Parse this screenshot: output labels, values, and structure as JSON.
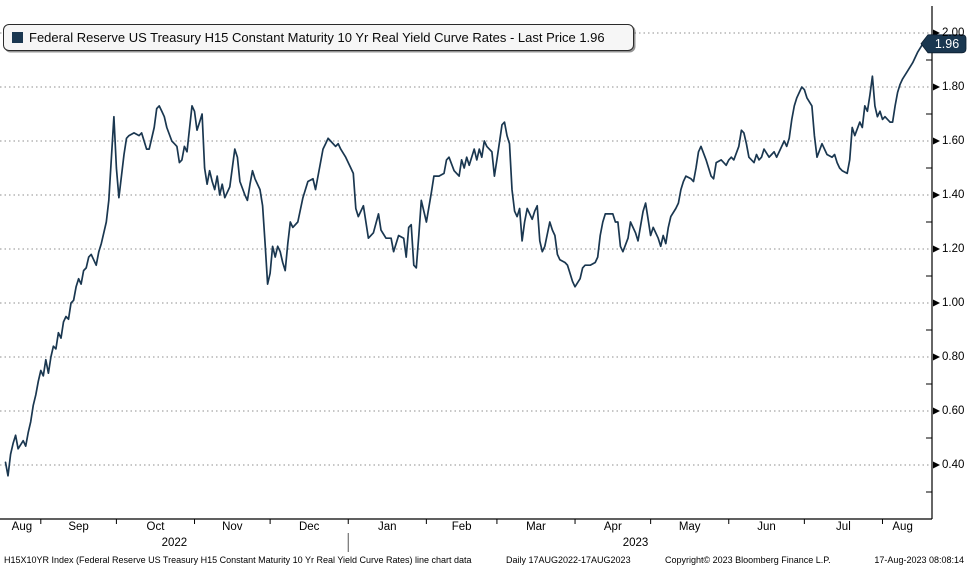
{
  "legend": {
    "label": "Federal Reserve US Treasury H15 Constant Maturity 10 Yr Real Yield Curve Rates - Last Price 1.96",
    "swatch_color": "#1a3750"
  },
  "last_price_badge": {
    "value": "1.96",
    "bg": "#1a3750",
    "text_color": "#ffffff"
  },
  "colors": {
    "line": "#1a3750",
    "grid": "#8f8f8f",
    "axis": "#000000",
    "legend_bg": "#f6f6f6"
  },
  "footer": {
    "left": "H15X10YR Index (Federal Reserve US Treasury H15 Constant Maturity 10 Yr Real Yield Curve Rates) line chart data",
    "daily": "Daily 17AUG2022-17AUG2023",
    "copyright": "Copyright© 2023 Bloomberg Finance L.P.",
    "timestamp": "17-Aug-2023 08:08:14"
  },
  "chart_data": {
    "type": "line",
    "title": "Federal Reserve US Treasury H15 Constant Maturity 10 Yr Real Yield Curve Rates - Last Price 1.96",
    "x_unit": "days since 17-Aug-2022",
    "x_range": [
      "17AUG2022",
      "17AUG2023"
    ],
    "ylim": [
      0.2,
      2.09
    ],
    "grid": "dotted horizontal at 0.20 intervals",
    "legend_position": "top-left boxed",
    "last_price": 1.96,
    "y_axis": {
      "side": "right",
      "major_values": [
        2.0,
        1.8,
        1.6,
        1.4,
        1.2,
        1.0,
        0.8,
        0.6,
        0.4
      ],
      "major_labels": [
        "2.00",
        "1.80",
        "1.60",
        "1.40",
        "1.20",
        "1.00",
        "0.80",
        "0.60",
        "0.40"
      ],
      "minor_values": [
        1.9,
        1.7,
        1.5,
        1.3,
        1.1,
        0.9,
        0.7,
        0.5,
        0.3
      ]
    },
    "x_axis": {
      "month_boundary_days": [
        15,
        45,
        76,
        106,
        137,
        168,
        196,
        227,
        257,
        288,
        318,
        349
      ],
      "month_labels": [
        "Aug",
        "Sep",
        "Oct",
        "Nov",
        "Dec",
        "Jan",
        "Feb",
        "Mar",
        "Apr",
        "May",
        "Jun",
        "Jul",
        "Aug"
      ],
      "year_labels": [
        {
          "label": "2022",
          "center_day": 68
        },
        {
          "label": "2023",
          "center_day": 251
        }
      ],
      "year_separator_day": 137
    },
    "series": [
      {
        "name": "Federal Reserve US Treasury H15 Constant Maturity 10 Yr Real Yield Curve Rates",
        "points": [
          [
            1,
            0.41
          ],
          [
            2,
            0.36
          ],
          [
            3,
            0.44
          ],
          [
            4,
            0.48
          ],
          [
            5,
            0.51
          ],
          [
            6,
            0.46
          ],
          [
            8,
            0.49
          ],
          [
            9,
            0.47
          ],
          [
            10,
            0.52
          ],
          [
            11,
            0.56
          ],
          [
            12,
            0.62
          ],
          [
            13,
            0.66
          ],
          [
            14,
            0.71
          ],
          [
            15,
            0.75
          ],
          [
            16,
            0.73
          ],
          [
            17,
            0.79
          ],
          [
            18,
            0.74
          ],
          [
            19,
            0.8
          ],
          [
            20,
            0.84
          ],
          [
            21,
            0.83
          ],
          [
            22,
            0.89
          ],
          [
            23,
            0.87
          ],
          [
            24,
            0.93
          ],
          [
            25,
            0.95
          ],
          [
            26,
            0.94
          ],
          [
            27,
            1.0
          ],
          [
            28,
            1.01
          ],
          [
            29,
            1.06
          ],
          [
            30,
            1.09
          ],
          [
            31,
            1.07
          ],
          [
            32,
            1.12
          ],
          [
            33,
            1.13
          ],
          [
            34,
            1.17
          ],
          [
            35,
            1.18
          ],
          [
            36,
            1.16
          ],
          [
            37,
            1.14
          ],
          [
            38,
            1.19
          ],
          [
            39,
            1.22
          ],
          [
            40,
            1.26
          ],
          [
            41,
            1.3
          ],
          [
            42,
            1.38
          ],
          [
            44,
            1.69
          ],
          [
            45,
            1.5
          ],
          [
            46,
            1.39
          ],
          [
            48,
            1.55
          ],
          [
            49,
            1.61
          ],
          [
            50,
            1.62
          ],
          [
            52,
            1.63
          ],
          [
            54,
            1.62
          ],
          [
            55,
            1.63
          ],
          [
            57,
            1.57
          ],
          [
            58,
            1.57
          ],
          [
            60,
            1.65
          ],
          [
            61,
            1.72
          ],
          [
            62,
            1.73
          ],
          [
            63,
            1.71
          ],
          [
            64,
            1.69
          ],
          [
            65,
            1.65
          ],
          [
            67,
            1.6
          ],
          [
            68,
            1.59
          ],
          [
            69,
            1.58
          ],
          [
            70,
            1.52
          ],
          [
            71,
            1.53
          ],
          [
            72,
            1.58
          ],
          [
            73,
            1.56
          ],
          [
            75,
            1.73
          ],
          [
            76,
            1.71
          ],
          [
            77,
            1.64
          ],
          [
            78,
            1.67
          ],
          [
            79,
            1.7
          ],
          [
            80,
            1.5
          ],
          [
            81,
            1.44
          ],
          [
            82,
            1.49
          ],
          [
            83,
            1.45
          ],
          [
            84,
            1.42
          ],
          [
            85,
            1.47
          ],
          [
            86,
            1.4
          ],
          [
            87,
            1.44
          ],
          [
            88,
            1.39
          ],
          [
            90,
            1.43
          ],
          [
            91,
            1.5
          ],
          [
            92,
            1.57
          ],
          [
            93,
            1.54
          ],
          [
            94,
            1.45
          ],
          [
            96,
            1.4
          ],
          [
            97,
            1.38
          ],
          [
            98,
            1.44
          ],
          [
            99,
            1.49
          ],
          [
            100,
            1.46
          ],
          [
            102,
            1.42
          ],
          [
            103,
            1.36
          ],
          [
            104,
            1.22
          ],
          [
            105,
            1.07
          ],
          [
            106,
            1.11
          ],
          [
            107,
            1.21
          ],
          [
            108,
            1.17
          ],
          [
            109,
            1.21
          ],
          [
            110,
            1.19
          ],
          [
            111,
            1.15
          ],
          [
            112,
            1.12
          ],
          [
            113,
            1.22
          ],
          [
            114,
            1.3
          ],
          [
            115,
            1.28
          ],
          [
            117,
            1.3
          ],
          [
            119,
            1.39
          ],
          [
            121,
            1.45
          ],
          [
            123,
            1.46
          ],
          [
            124,
            1.42
          ],
          [
            126,
            1.52
          ],
          [
            127,
            1.57
          ],
          [
            128,
            1.59
          ],
          [
            129,
            1.61
          ],
          [
            130,
            1.6
          ],
          [
            132,
            1.58
          ],
          [
            133,
            1.59
          ],
          [
            134,
            1.57
          ],
          [
            136,
            1.54
          ],
          [
            138,
            1.5
          ],
          [
            139,
            1.48
          ],
          [
            140,
            1.35
          ],
          [
            141,
            1.32
          ],
          [
            143,
            1.36
          ],
          [
            145,
            1.24
          ],
          [
            147,
            1.26
          ],
          [
            149,
            1.33
          ],
          [
            150,
            1.27
          ],
          [
            152,
            1.24
          ],
          [
            154,
            1.24
          ],
          [
            155,
            1.19
          ],
          [
            157,
            1.25
          ],
          [
            159,
            1.24
          ],
          [
            160,
            1.17
          ],
          [
            161,
            1.28
          ],
          [
            162,
            1.29
          ],
          [
            163,
            1.14
          ],
          [
            164,
            1.13
          ],
          [
            165,
            1.25
          ],
          [
            166,
            1.38
          ],
          [
            168,
            1.3
          ],
          [
            170,
            1.41
          ],
          [
            171,
            1.47
          ],
          [
            173,
            1.47
          ],
          [
            175,
            1.48
          ],
          [
            176,
            1.53
          ],
          [
            177,
            1.54
          ],
          [
            179,
            1.49
          ],
          [
            181,
            1.47
          ],
          [
            182,
            1.53
          ],
          [
            183,
            1.5
          ],
          [
            184,
            1.54
          ],
          [
            185,
            1.51
          ],
          [
            187,
            1.57
          ],
          [
            188,
            1.53
          ],
          [
            189,
            1.57
          ],
          [
            190,
            1.54
          ],
          [
            191,
            1.6
          ],
          [
            192,
            1.58
          ],
          [
            194,
            1.56
          ],
          [
            195,
            1.47
          ],
          [
            196,
            1.53
          ],
          [
            198,
            1.66
          ],
          [
            199,
            1.67
          ],
          [
            200,
            1.62
          ],
          [
            201,
            1.59
          ],
          [
            202,
            1.42
          ],
          [
            203,
            1.34
          ],
          [
            204,
            1.32
          ],
          [
            205,
            1.35
          ],
          [
            206,
            1.23
          ],
          [
            207,
            1.3
          ],
          [
            208,
            1.35
          ],
          [
            210,
            1.31
          ],
          [
            211,
            1.34
          ],
          [
            212,
            1.36
          ],
          [
            213,
            1.23
          ],
          [
            214,
            1.19
          ],
          [
            215,
            1.21
          ],
          [
            217,
            1.3
          ],
          [
            218,
            1.27
          ],
          [
            219,
            1.25
          ],
          [
            220,
            1.18
          ],
          [
            221,
            1.16
          ],
          [
            223,
            1.15
          ],
          [
            224,
            1.14
          ],
          [
            225,
            1.11
          ],
          [
            226,
            1.08
          ],
          [
            227,
            1.06
          ],
          [
            229,
            1.09
          ],
          [
            230,
            1.13
          ],
          [
            231,
            1.14
          ],
          [
            233,
            1.14
          ],
          [
            235,
            1.15
          ],
          [
            236,
            1.17
          ],
          [
            237,
            1.25
          ],
          [
            238,
            1.3
          ],
          [
            239,
            1.33
          ],
          [
            240,
            1.33
          ],
          [
            242,
            1.33
          ],
          [
            243,
            1.3
          ],
          [
            244,
            1.3
          ],
          [
            245,
            1.21
          ],
          [
            246,
            1.19
          ],
          [
            248,
            1.24
          ],
          [
            249,
            1.3
          ],
          [
            250,
            1.28
          ],
          [
            251,
            1.26
          ],
          [
            252,
            1.23
          ],
          [
            254,
            1.34
          ],
          [
            255,
            1.37
          ],
          [
            256,
            1.31
          ],
          [
            257,
            1.25
          ],
          [
            258,
            1.28
          ],
          [
            260,
            1.24
          ],
          [
            261,
            1.21
          ],
          [
            262,
            1.25
          ],
          [
            263,
            1.22
          ],
          [
            264,
            1.28
          ],
          [
            265,
            1.32
          ],
          [
            267,
            1.35
          ],
          [
            268,
            1.37
          ],
          [
            269,
            1.42
          ],
          [
            270,
            1.45
          ],
          [
            271,
            1.47
          ],
          [
            273,
            1.46
          ],
          [
            274,
            1.45
          ],
          [
            275,
            1.5
          ],
          [
            276,
            1.56
          ],
          [
            277,
            1.58
          ],
          [
            279,
            1.53
          ],
          [
            280,
            1.5
          ],
          [
            281,
            1.47
          ],
          [
            282,
            1.46
          ],
          [
            283,
            1.52
          ],
          [
            285,
            1.53
          ],
          [
            286,
            1.52
          ],
          [
            287,
            1.51
          ],
          [
            288,
            1.53
          ],
          [
            289,
            1.54
          ],
          [
            290,
            1.53
          ],
          [
            292,
            1.58
          ],
          [
            293,
            1.64
          ],
          [
            294,
            1.63
          ],
          [
            295,
            1.59
          ],
          [
            296,
            1.54
          ],
          [
            298,
            1.52
          ],
          [
            299,
            1.55
          ],
          [
            300,
            1.53
          ],
          [
            301,
            1.54
          ],
          [
            302,
            1.57
          ],
          [
            304,
            1.54
          ],
          [
            305,
            1.55
          ],
          [
            306,
            1.56
          ],
          [
            307,
            1.54
          ],
          [
            308,
            1.56
          ],
          [
            310,
            1.6
          ],
          [
            311,
            1.58
          ],
          [
            312,
            1.61
          ],
          [
            313,
            1.68
          ],
          [
            314,
            1.73
          ],
          [
            315,
            1.76
          ],
          [
            316,
            1.78
          ],
          [
            317,
            1.8
          ],
          [
            318,
            1.79
          ],
          [
            319,
            1.76
          ],
          [
            321,
            1.73
          ],
          [
            322,
            1.62
          ],
          [
            323,
            1.54
          ],
          [
            325,
            1.59
          ],
          [
            326,
            1.57
          ],
          [
            327,
            1.55
          ],
          [
            329,
            1.54
          ],
          [
            330,
            1.55
          ],
          [
            331,
            1.52
          ],
          [
            332,
            1.5
          ],
          [
            333,
            1.49
          ],
          [
            335,
            1.48
          ],
          [
            336,
            1.53
          ],
          [
            337,
            1.65
          ],
          [
            338,
            1.62
          ],
          [
            340,
            1.67
          ],
          [
            341,
            1.65
          ],
          [
            342,
            1.73
          ],
          [
            343,
            1.71
          ],
          [
            344,
            1.77
          ],
          [
            345,
            1.84
          ],
          [
            346,
            1.73
          ],
          [
            347,
            1.69
          ],
          [
            348,
            1.71
          ],
          [
            349,
            1.68
          ],
          [
            350,
            1.69
          ],
          [
            352,
            1.67
          ],
          [
            353,
            1.67
          ],
          [
            354,
            1.73
          ],
          [
            355,
            1.78
          ],
          [
            356,
            1.81
          ],
          [
            357,
            1.83
          ],
          [
            359,
            1.86
          ],
          [
            361,
            1.89
          ],
          [
            363,
            1.93
          ],
          [
            365,
            1.96
          ]
        ]
      }
    ]
  }
}
